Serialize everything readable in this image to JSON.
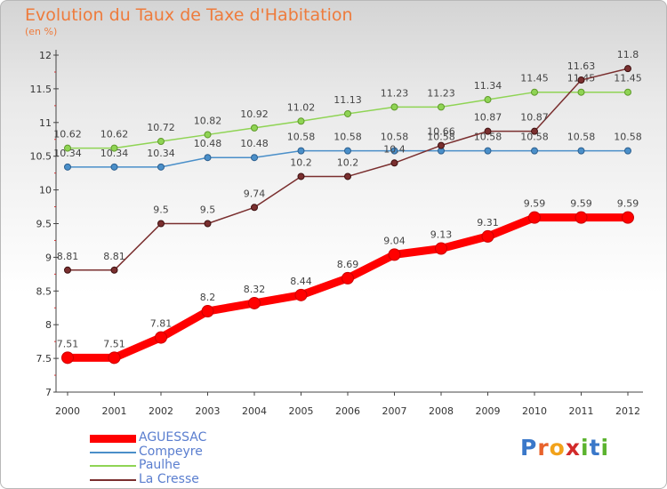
{
  "title": "Evolution du Taux de Taxe d'Habitation",
  "unit_label": "(en %)",
  "logo": {
    "text": "Proxiti",
    "letters": [
      "P",
      "r",
      "o",
      "x",
      "i",
      "t",
      "i"
    ],
    "colors": [
      "#3a78c9",
      "#e8622b",
      "#f2a21a",
      "#d22a2a",
      "#5bb32e",
      "#3a78c9",
      "#5bb32e"
    ]
  },
  "chart_data": {
    "type": "line",
    "x": [
      "2000",
      "2001",
      "2002",
      "2003",
      "2004",
      "2005",
      "2006",
      "2007",
      "2008",
      "2009",
      "2010",
      "2011",
      "2012"
    ],
    "ylim": [
      7,
      12
    ],
    "yticks": [
      7,
      7.5,
      8,
      8.5,
      9,
      9.5,
      10,
      10.5,
      11,
      11.5,
      12
    ],
    "ytick_labels": [
      "7",
      "7.5",
      "8",
      "8.5",
      "9",
      "9.5",
      "10",
      "10.5",
      "11",
      "11.5",
      "12"
    ],
    "grid": false,
    "legend_position": "bottom-left",
    "series": [
      {
        "name": "AGUESSAC",
        "color": "#ff0000",
        "values": [
          7.51,
          7.51,
          7.81,
          8.2,
          8.32,
          8.44,
          8.69,
          9.04,
          9.13,
          9.31,
          9.59,
          9.59,
          9.59
        ],
        "labels": [
          "7.51",
          "7.51",
          "7.81",
          "8.2",
          "8.32",
          "8.44",
          "8.69",
          "9.04",
          "9.13",
          "9.31",
          "9.59",
          "9.59",
          "9.59"
        ]
      },
      {
        "name": "Compeyre",
        "color": "#4a8fc9",
        "values": [
          10.34,
          10.34,
          10.34,
          10.48,
          10.48,
          10.58,
          10.58,
          10.58,
          10.58,
          10.58,
          10.58,
          10.58,
          10.58
        ],
        "labels": [
          "10.34",
          "10.34",
          "10.34",
          "10.48",
          "10.48",
          "10.58",
          "10.58",
          "10.58",
          "10.58",
          "10.58",
          "10.58",
          "10.58",
          "10.58"
        ]
      },
      {
        "name": "Paulhe",
        "color": "#8fd454",
        "values": [
          10.62,
          10.62,
          10.72,
          10.82,
          10.92,
          11.02,
          11.13,
          11.23,
          11.23,
          11.34,
          11.45,
          11.45,
          11.45
        ],
        "labels": [
          "10.62",
          "10.62",
          "10.72",
          "10.82",
          "10.92",
          "11.02",
          "11.13",
          "11.23",
          "11.23",
          "11.34",
          "11.45",
          "11.45",
          "11.45"
        ]
      },
      {
        "name": "La Cresse",
        "color": "#7a2f2f",
        "values": [
          8.81,
          8.81,
          9.5,
          9.5,
          9.74,
          10.2,
          10.2,
          10.4,
          10.66,
          10.87,
          10.87,
          11.63,
          11.8
        ],
        "labels": [
          "8.81",
          "8.81",
          "9.5",
          "9.5",
          "9.74",
          "10.2",
          "10.2",
          "10.4",
          "10.66",
          "10.87",
          "10.87",
          "11.63",
          "11.8"
        ]
      }
    ]
  }
}
